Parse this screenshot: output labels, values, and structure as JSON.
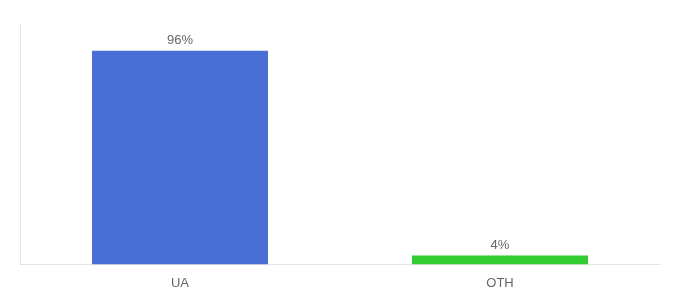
{
  "chart_data": {
    "type": "bar",
    "categories": [
      "UA",
      "OTH"
    ],
    "values": [
      96,
      4
    ],
    "value_labels": [
      "96%",
      "4%"
    ],
    "data_labels": true,
    "colors": [
      "#4a6fd4",
      "#33cc33"
    ],
    "ylim": [
      0,
      108
    ],
    "tick_labels": "x",
    "grid": false
  }
}
